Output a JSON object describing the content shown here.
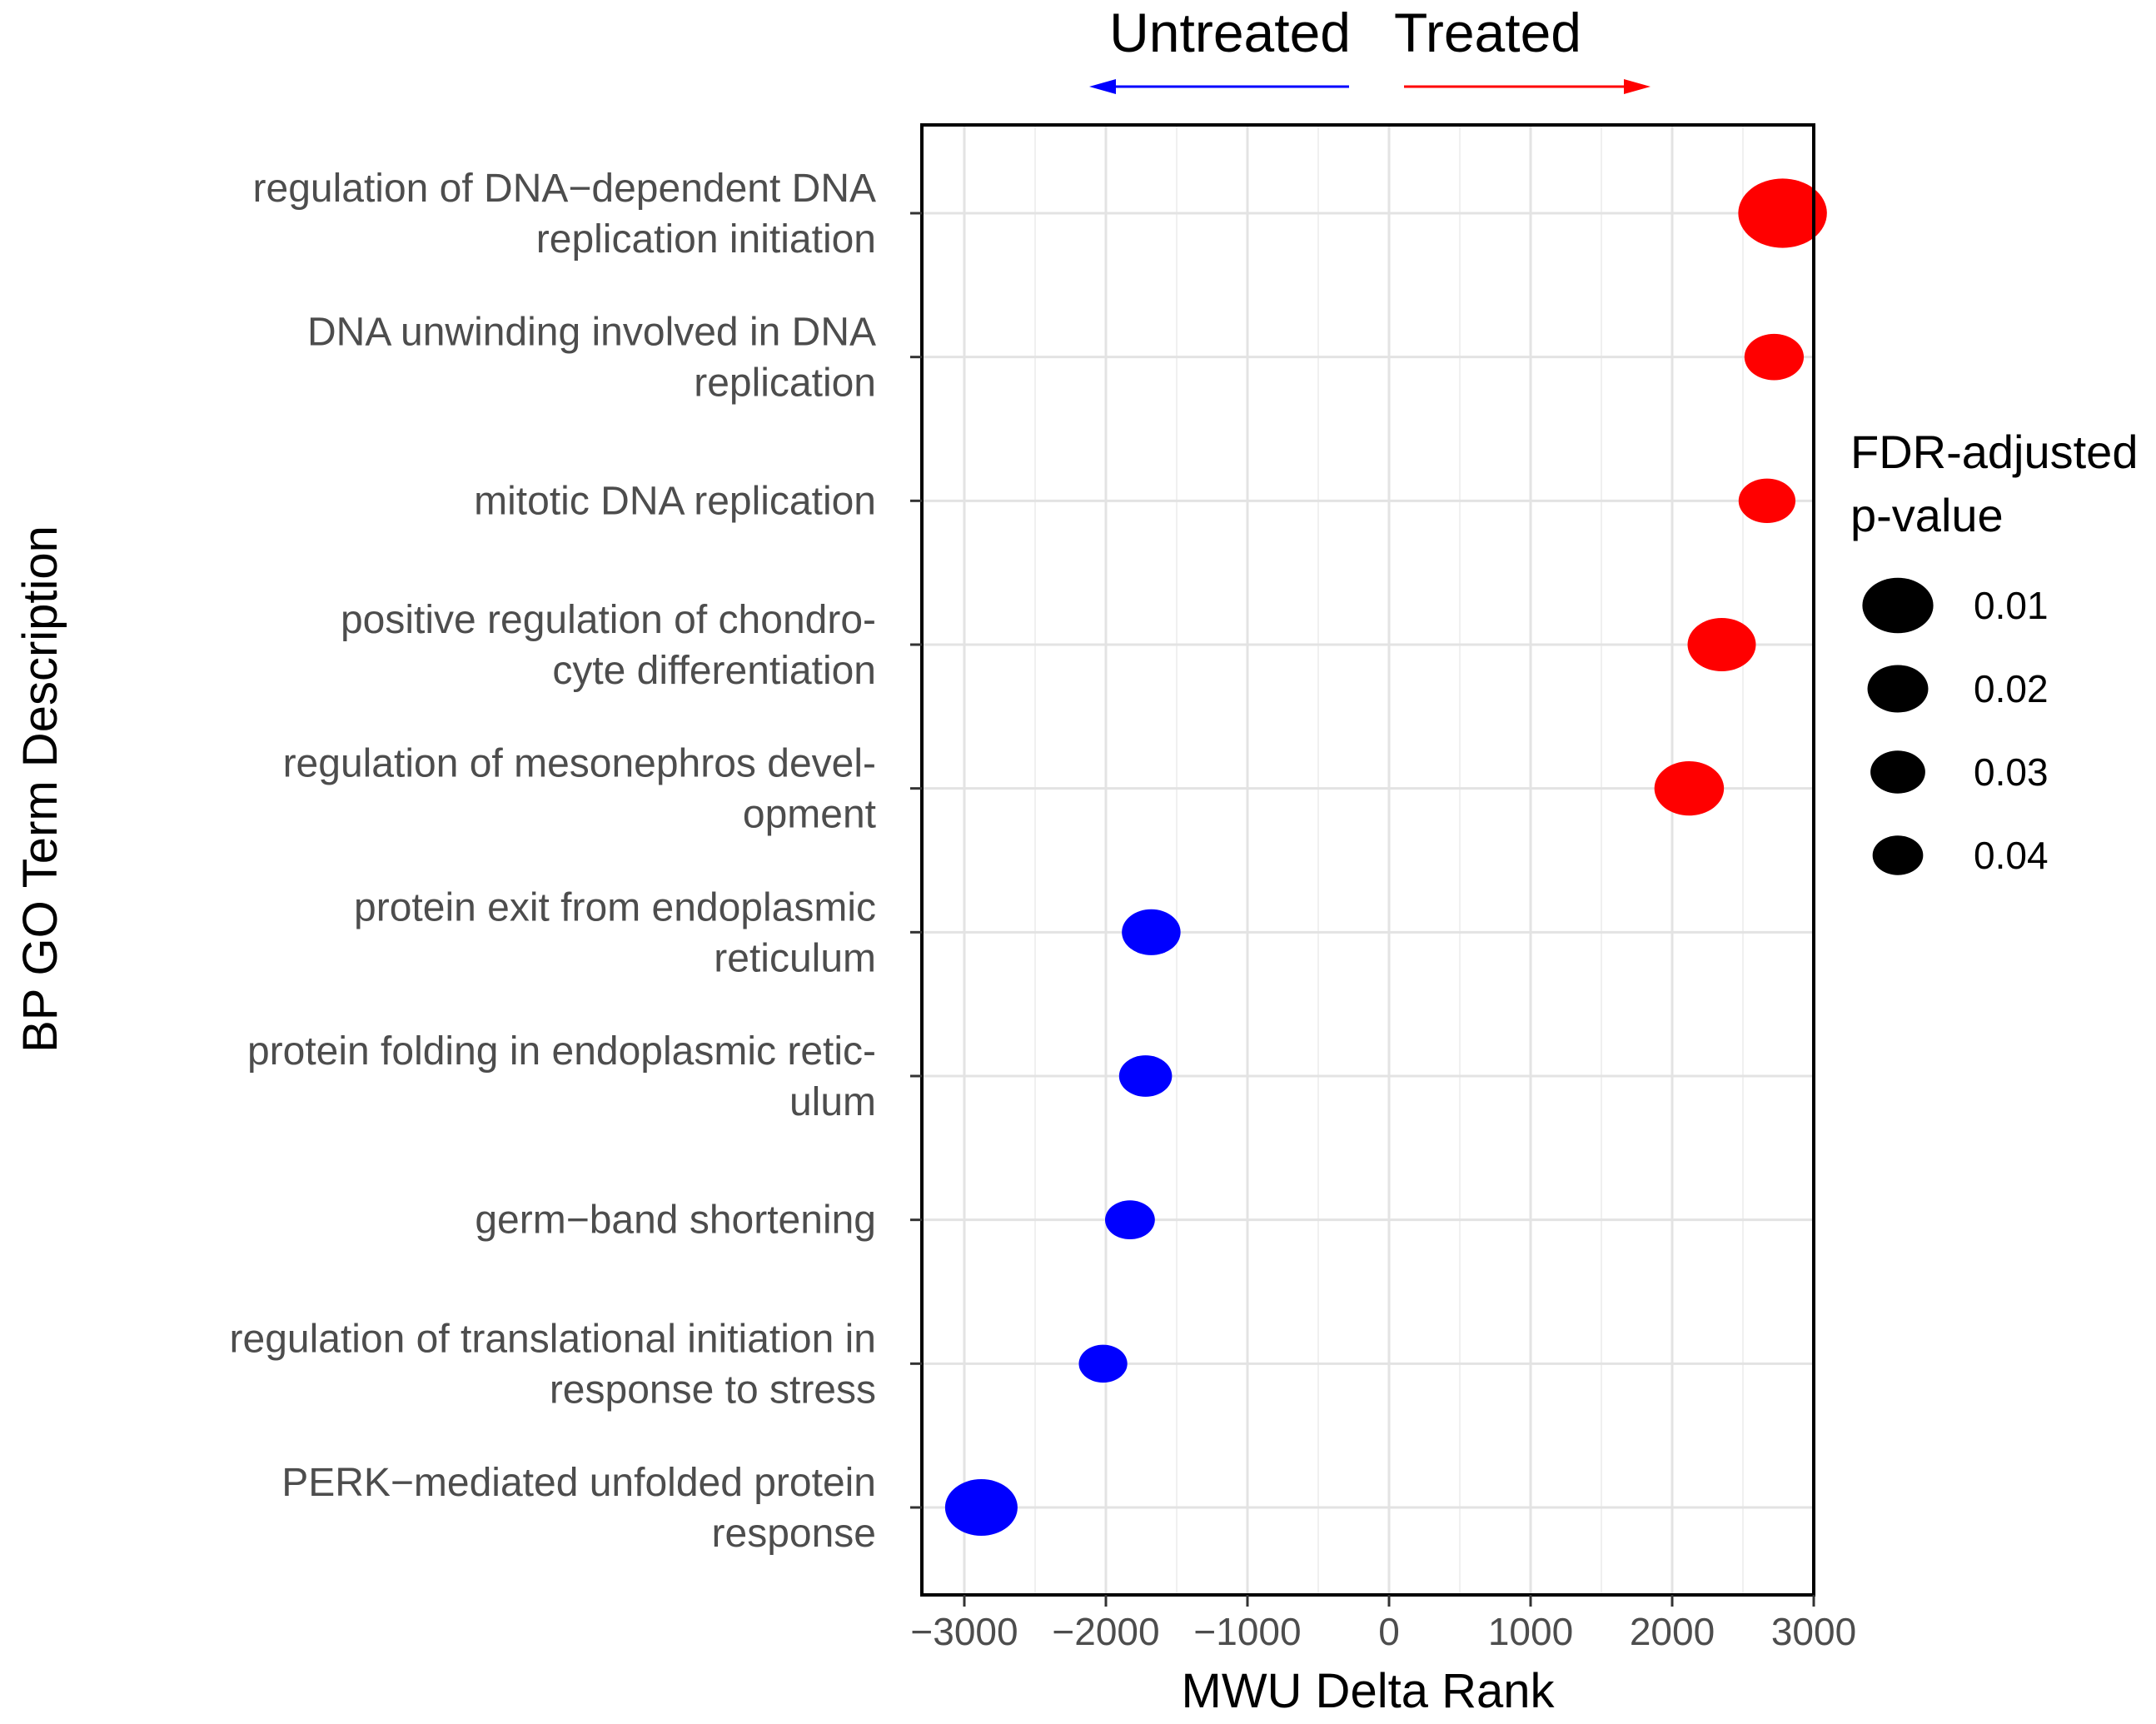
{
  "chart_data": {
    "type": "scatter",
    "xlabel": "MWU Delta Rank",
    "ylabel": "BP GO Term Description",
    "xlim": [
      -3300,
      3000
    ],
    "xticks": [
      -3000,
      -2000,
      -1000,
      0,
      1000,
      2000,
      3000
    ],
    "xtick_labels": [
      "−3000",
      "−2000",
      "−1000",
      "0",
      "1000",
      "2000",
      "3000"
    ],
    "grid": true,
    "direction_labels": {
      "left": "Untreated",
      "right": "Treated"
    },
    "direction_colors": {
      "left": "#0000ff",
      "right": "#ff0000"
    },
    "legend": {
      "title_lines": [
        "FDR-adjusted",
        "p-value"
      ],
      "position": "right",
      "entries": [
        {
          "label": "0.01",
          "p": 0.01
        },
        {
          "label": "0.02",
          "p": 0.02
        },
        {
          "label": "0.03",
          "p": 0.03
        },
        {
          "label": "0.04",
          "p": 0.04
        }
      ]
    },
    "points": [
      {
        "term_lines": [
          "regulation of DNA−dependent DNA",
          "replication initiation"
        ],
        "delta_rank": 2780,
        "p_adj": 0.003,
        "direction": "Treated"
      },
      {
        "term_lines": [
          "DNA unwinding involved in DNA",
          "replication"
        ],
        "delta_rank": 2720,
        "p_adj": 0.022,
        "direction": "Treated"
      },
      {
        "term_lines": [
          "mitotic DNA replication"
        ],
        "delta_rank": 2670,
        "p_adj": 0.026,
        "direction": "Treated"
      },
      {
        "term_lines": [
          "positive regulation of chondro-",
          "cyte differentiation"
        ],
        "delta_rank": 2350,
        "p_adj": 0.012,
        "direction": "Treated"
      },
      {
        "term_lines": [
          "regulation of mesonephros devel-",
          "opment"
        ],
        "delta_rank": 2120,
        "p_adj": 0.011,
        "direction": "Treated"
      },
      {
        "term_lines": [
          "protein exit from endoplasmic",
          "reticulum"
        ],
        "delta_rank": -1680,
        "p_adj": 0.023,
        "direction": "Untreated"
      },
      {
        "term_lines": [
          "protein folding in endoplasmic retic-",
          "ulum"
        ],
        "delta_rank": -1720,
        "p_adj": 0.034,
        "direction": "Untreated"
      },
      {
        "term_lines": [
          "germ−band shortening"
        ],
        "delta_rank": -1830,
        "p_adj": 0.042,
        "direction": "Untreated"
      },
      {
        "term_lines": [
          "regulation of translational initiation in",
          "response to stress"
        ],
        "delta_rank": -2020,
        "p_adj": 0.046,
        "direction": "Untreated"
      },
      {
        "term_lines": [
          "PERK−mediated unfolded protein",
          "response"
        ],
        "delta_rank": -2880,
        "p_adj": 0.009,
        "direction": "Untreated"
      }
    ]
  }
}
